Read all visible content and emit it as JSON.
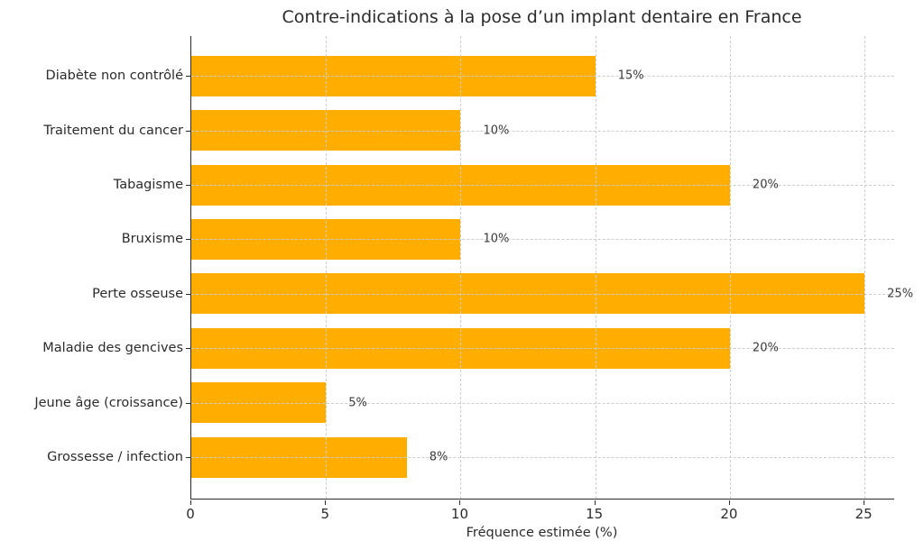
{
  "chart_data": {
    "type": "bar",
    "orientation": "horizontal",
    "title": "Contre-indications à la pose d’un implant dentaire en France",
    "xlabel": "Fréquence estimée (%)",
    "categories": [
      "Diabète non contrôlé",
      "Traitement du cancer",
      "Tabagisme",
      "Bruxisme",
      "Perte osseuse",
      "Maladie des gencives",
      "Jeune âge (croissance)",
      "Grossesse / infection"
    ],
    "values": [
      15,
      10,
      20,
      10,
      25,
      20,
      5,
      8
    ],
    "value_labels": [
      "15%",
      "10%",
      "20%",
      "10%",
      "25%",
      "20%",
      "5%",
      "8%"
    ],
    "xticks": [
      0,
      5,
      10,
      15,
      20,
      25
    ],
    "xlim": [
      0,
      26.1
    ],
    "grid": true,
    "grid_style": "dashed",
    "grid_on_top_of_bars": true,
    "bar_color": "#ffae00",
    "grid_color": "#cdcdcd",
    "axis_color": "#2b2b2b",
    "text_color": "#2b2b2b",
    "value_label_color": "#3a3a3a",
    "background_color": "#ffffff",
    "legend": null
  }
}
